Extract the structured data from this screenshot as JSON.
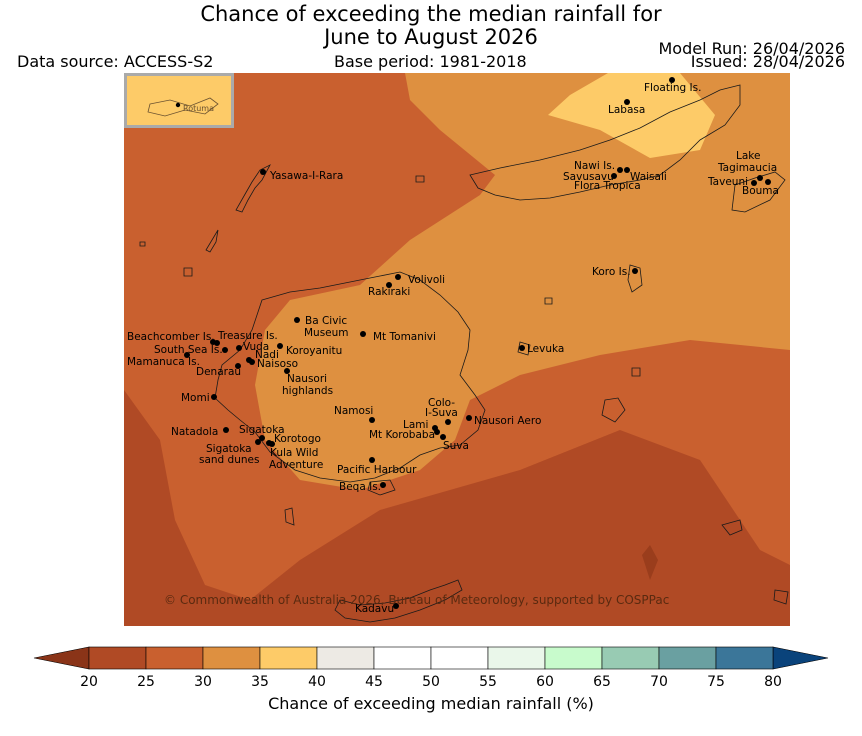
{
  "title_line1": "Chance of exceeding the median rainfall for",
  "title_line2": "June to August 2026",
  "data_source": "Data source: ACCESS-S2",
  "base_period": "Base period: 1981-2018",
  "model_run": "Model Run: 26/04/2026",
  "issued": "Issued: 28/04/2026",
  "inset_label": "Rotuma",
  "copyright": "© Commonwealth of Australia 2026, Bureau of Meteorology, supported by COSPPac",
  "colorbar": {
    "label": "Chance of exceeding median rainfall (%)",
    "ticks": [
      "20",
      "25",
      "30",
      "35",
      "40",
      "45",
      "50",
      "55",
      "60",
      "65",
      "70",
      "75",
      "80"
    ],
    "colors": [
      "#b04a25",
      "#c9602f",
      "#de9040",
      "#fdcb68",
      "#edeae4",
      "#ffffff",
      "#ffffff",
      "#eaf7ea",
      "#c8fbcc",
      "#98cbb3",
      "#6aa0a1",
      "#3b7699",
      "#0a437b"
    ],
    "under_color": "#8a3418",
    "over_color": "#0a437b"
  },
  "colors": {
    "c20": "#b04a25",
    "c25": "#c9602f",
    "c30": "#de9040",
    "c35": "#fdcb68",
    "coast": "#1a1a1a"
  },
  "places": [
    {
      "name": "Floating Is."
    },
    {
      "name": "Labasa"
    },
    {
      "name": "Nawi Is."
    },
    {
      "name": "Savusavu"
    },
    {
      "name": "Waisali"
    },
    {
      "name": "Flora Tropica"
    },
    {
      "name": "Lake"
    },
    {
      "name": "Tagimaucia"
    },
    {
      "name": "Taveuni"
    },
    {
      "name": "Bouma"
    },
    {
      "name": "Yasawa-I-Rara"
    },
    {
      "name": "Volivoli"
    },
    {
      "name": "Rakiraki"
    },
    {
      "name": "Koro Is."
    },
    {
      "name": "Ba Civic"
    },
    {
      "name": "Museum"
    },
    {
      "name": "Mt Tomanivi"
    },
    {
      "name": "Beachcomber Is."
    },
    {
      "name": "Treasure Is."
    },
    {
      "name": "South Sea Is."
    },
    {
      "name": "Vuda"
    },
    {
      "name": "Koroyanitu"
    },
    {
      "name": "Nadi"
    },
    {
      "name": "Mamanuca Is."
    },
    {
      "name": "Naisoso"
    },
    {
      "name": "Denarau"
    },
    {
      "name": "Nausori"
    },
    {
      "name": "highlands"
    },
    {
      "name": "Levuka"
    },
    {
      "name": "Momi"
    },
    {
      "name": "Namosi"
    },
    {
      "name": "Colo-"
    },
    {
      "name": "I-Suva"
    },
    {
      "name": "Nausori Aero"
    },
    {
      "name": "Natadola"
    },
    {
      "name": "Lami"
    },
    {
      "name": "Sigatoka"
    },
    {
      "name": "Korotogo"
    },
    {
      "name": "Mt Korobaba"
    },
    {
      "name": "Suva"
    },
    {
      "name": "Sigatoka"
    },
    {
      "name": "sand dunes"
    },
    {
      "name": "Kula Wild"
    },
    {
      "name": "Adventure"
    },
    {
      "name": "Pacific Harbour"
    },
    {
      "name": "Beqa Is."
    },
    {
      "name": "Kadavu"
    }
  ]
}
